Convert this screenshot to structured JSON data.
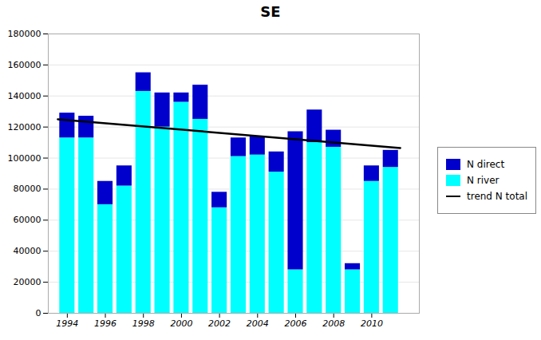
{
  "chart_data": {
    "type": "bar",
    "title": "SE",
    "stacked": true,
    "x": [
      1994,
      1995,
      1996,
      1997,
      1998,
      1999,
      2000,
      2001,
      2002,
      2003,
      2004,
      2005,
      2006,
      2007,
      2008,
      2009,
      2010,
      2011
    ],
    "series": [
      {
        "name": "N river",
        "color": "#00FFFF",
        "values": [
          113000,
          113000,
          70000,
          82000,
          143000,
          120000,
          136000,
          125000,
          68000,
          101000,
          102000,
          91000,
          28000,
          110000,
          107000,
          28000,
          85000,
          94000
        ]
      },
      {
        "name": "N direct",
        "color": "#0000CC",
        "values": [
          16000,
          14000,
          15000,
          13000,
          12000,
          22000,
          6000,
          22000,
          10000,
          12000,
          12000,
          13000,
          89000,
          21000,
          11000,
          4000,
          10000,
          11000
        ]
      },
      {
        "name": "trend N total",
        "type": "line",
        "color": "#000000",
        "x": [
          1993.5,
          2011.5
        ],
        "values": [
          125000,
          106500
        ]
      }
    ],
    "xlim": [
      1993.0,
      2012.5
    ],
    "xticks": [
      1994,
      1996,
      1998,
      2000,
      2002,
      2004,
      2006,
      2008,
      2010
    ],
    "ylim": [
      0,
      180000
    ],
    "yticks": [
      0,
      20000,
      40000,
      60000,
      80000,
      100000,
      120000,
      140000,
      160000,
      180000
    ],
    "grid": true,
    "legend": "right"
  }
}
